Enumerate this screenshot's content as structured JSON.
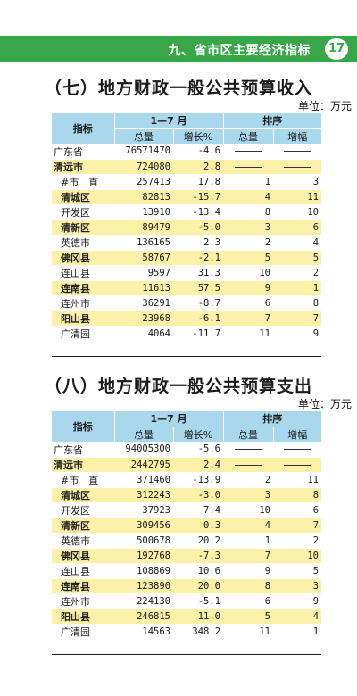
{
  "header": {
    "title": "九、省市区主要经济指标",
    "page_number": "17"
  },
  "sections": [
    {
      "title": "（七）地方财政一般公共预算收入",
      "unit": "单位：万元",
      "columns": {
        "indicator": "指标",
        "period": "1—7 月",
        "ranking": "排序",
        "total": "总量",
        "growth": "增长%",
        "rank_total": "总量",
        "rank_growth": "增幅"
      },
      "rows": [
        {
          "name": "广东省",
          "total": "76571470",
          "growth": "-4.6",
          "rank_total": "—",
          "rank_growth": "—",
          "hl": false
        },
        {
          "name": "清远市",
          "total": "724080",
          "growth": "2.8",
          "rank_total": "—",
          "rank_growth": "—",
          "hl": true
        },
        {
          "name": "#市　直",
          "total": "257413",
          "growth": "17.8",
          "rank_total": "1",
          "rank_growth": "3",
          "hl": false
        },
        {
          "name": "清城区",
          "total": "82813",
          "growth": "-15.7",
          "rank_total": "4",
          "rank_growth": "11",
          "hl": true
        },
        {
          "name": "开发区",
          "total": "13910",
          "growth": "-13.4",
          "rank_total": "8",
          "rank_growth": "10",
          "hl": false
        },
        {
          "name": "清新区",
          "total": "89479",
          "growth": "-5.0",
          "rank_total": "3",
          "rank_growth": "6",
          "hl": true
        },
        {
          "name": "英德市",
          "total": "136165",
          "growth": "2.3",
          "rank_total": "2",
          "rank_growth": "4",
          "hl": false
        },
        {
          "name": "佛冈县",
          "total": "58767",
          "growth": "-2.1",
          "rank_total": "5",
          "rank_growth": "5",
          "hl": true
        },
        {
          "name": "连山县",
          "total": "9597",
          "growth": "31.3",
          "rank_total": "10",
          "rank_growth": "2",
          "hl": false
        },
        {
          "name": "连南县",
          "total": "11613",
          "growth": "57.5",
          "rank_total": "9",
          "rank_growth": "1",
          "hl": true
        },
        {
          "name": "连州市",
          "total": "36291",
          "growth": "-8.7",
          "rank_total": "6",
          "rank_growth": "8",
          "hl": false
        },
        {
          "name": "阳山县",
          "total": "23968",
          "growth": "-6.1",
          "rank_total": "7",
          "rank_growth": "7",
          "hl": true
        },
        {
          "name": "广清园",
          "total": "4064",
          "growth": "-11.7",
          "rank_total": "11",
          "rank_growth": "9",
          "hl": false
        }
      ]
    },
    {
      "title": "（八）地方财政一般公共预算支出",
      "unit": "单位：万元",
      "columns": {
        "indicator": "指标",
        "period": "1—7 月",
        "ranking": "排序",
        "total": "总量",
        "growth": "增长%",
        "rank_total": "总量",
        "rank_growth": "增幅"
      },
      "rows": [
        {
          "name": "广东省",
          "total": "94005300",
          "growth": "-5.6",
          "rank_total": "—",
          "rank_growth": "—",
          "hl": false
        },
        {
          "name": "清远市",
          "total": "2442795",
          "growth": "2.4",
          "rank_total": "—",
          "rank_growth": "—",
          "hl": true
        },
        {
          "name": "#市　直",
          "total": "371460",
          "growth": "-13.9",
          "rank_total": "2",
          "rank_growth": "11",
          "hl": false
        },
        {
          "name": "清城区",
          "total": "312243",
          "growth": "-3.0",
          "rank_total": "3",
          "rank_growth": "8",
          "hl": true
        },
        {
          "name": "开发区",
          "total": "37923",
          "growth": "7.4",
          "rank_total": "10",
          "rank_growth": "6",
          "hl": false
        },
        {
          "name": "清新区",
          "total": "309456",
          "growth": "0.3",
          "rank_total": "4",
          "rank_growth": "7",
          "hl": true
        },
        {
          "name": "英德市",
          "total": "500678",
          "growth": "20.2",
          "rank_total": "1",
          "rank_growth": "2",
          "hl": false
        },
        {
          "name": "佛冈县",
          "total": "192768",
          "growth": "-7.3",
          "rank_total": "7",
          "rank_growth": "10",
          "hl": true
        },
        {
          "name": "连山县",
          "total": "108869",
          "growth": "10.6",
          "rank_total": "9",
          "rank_growth": "5",
          "hl": false
        },
        {
          "name": "连南县",
          "total": "123890",
          "growth": "20.0",
          "rank_total": "8",
          "rank_growth": "3",
          "hl": true
        },
        {
          "name": "连州市",
          "total": "224130",
          "growth": "-5.1",
          "rank_total": "6",
          "rank_growth": "9",
          "hl": false
        },
        {
          "name": "阳山县",
          "total": "246815",
          "growth": "11.0",
          "rank_total": "5",
          "rank_growth": "4",
          "hl": true
        },
        {
          "name": "广清园",
          "total": "14563",
          "growth": "348.2",
          "rank_total": "11",
          "rank_growth": "1",
          "hl": false
        }
      ]
    }
  ],
  "colors": {
    "header_green": "#3aa64a",
    "table_header_blue": "#a9d7ec",
    "highlight_yellow": "#fbf1a8"
  }
}
